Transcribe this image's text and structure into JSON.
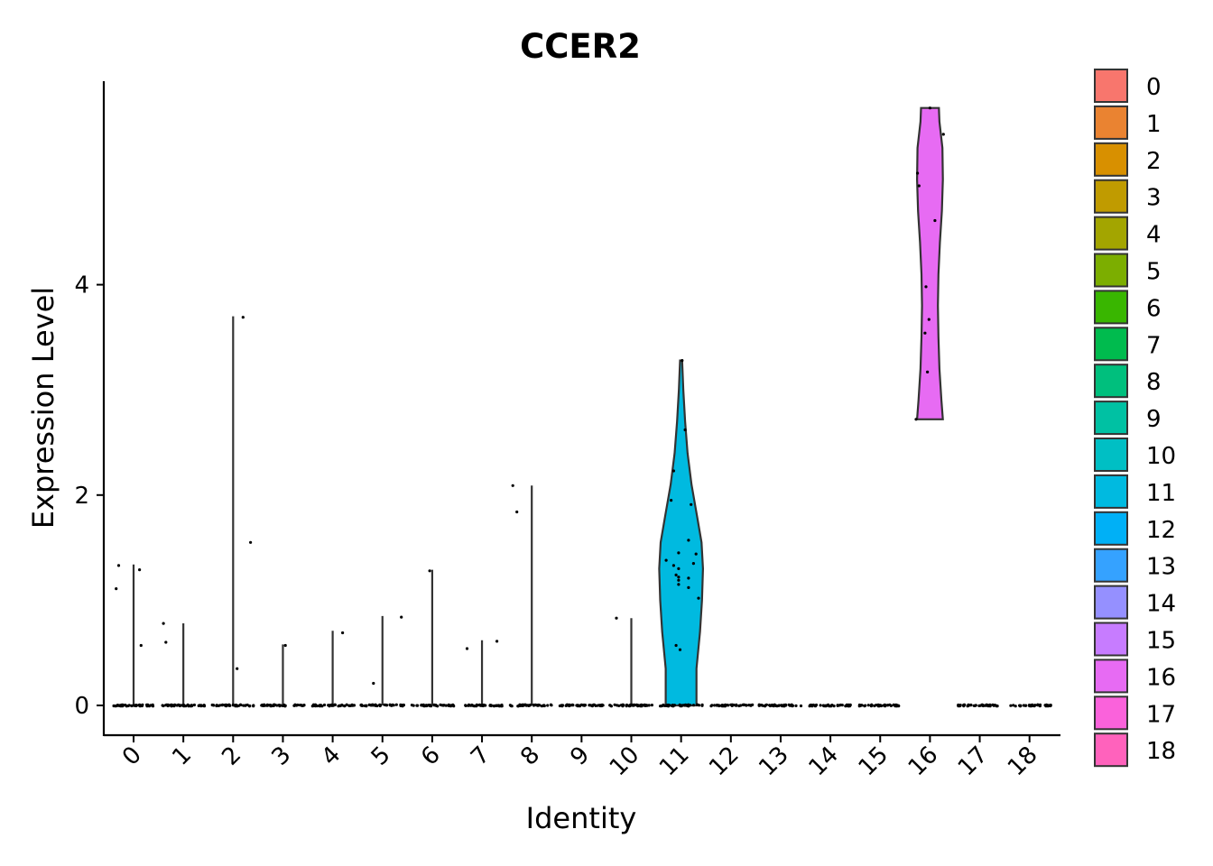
{
  "chart_data": {
    "type": "violin",
    "title": "CCER2",
    "xlabel": "Identity",
    "ylabel": "Expression Level",
    "ylim": [
      -0.7,
      5.9
    ],
    "yticks": [
      0,
      2,
      4
    ],
    "grid": false,
    "legend_position": "right",
    "categories": [
      "0",
      "1",
      "2",
      "3",
      "4",
      "5",
      "6",
      "7",
      "8",
      "9",
      "10",
      "11",
      "12",
      "13",
      "14",
      "15",
      "16",
      "17",
      "18"
    ],
    "colors": [
      "#F8766D",
      "#EA8331",
      "#D89000",
      "#C09B00",
      "#A3A500",
      "#7CAE00",
      "#39B600",
      "#00BB4E",
      "#00BF7D",
      "#00C1A3",
      "#00BFC4",
      "#00BAE0",
      "#00B0F6",
      "#35A2FF",
      "#9590FF",
      "#C77CFF",
      "#E76BF3",
      "#FA62DB",
      "#FF62BC"
    ],
    "series": [
      {
        "name": "0",
        "max": 1.34,
        "high_points": [
          [
            -0.3,
            1.33
          ],
          [
            -0.35,
            1.11
          ],
          [
            0.12,
            1.29
          ],
          [
            0.15,
            0.57
          ]
        ]
      },
      {
        "name": "1",
        "max": 0.78,
        "high_points": [
          [
            -0.4,
            0.78
          ],
          [
            -0.35,
            0.6
          ]
        ]
      },
      {
        "name": "2",
        "max": 3.7,
        "high_points": [
          [
            0.2,
            3.69
          ],
          [
            0.35,
            1.55
          ],
          [
            0.08,
            0.35
          ]
        ]
      },
      {
        "name": "3",
        "max": 0.58,
        "high_points": [
          [
            0.05,
            0.57
          ]
        ]
      },
      {
        "name": "4",
        "max": 0.71,
        "high_points": [
          [
            0.2,
            0.69
          ]
        ]
      },
      {
        "name": "5",
        "max": 0.85,
        "high_points": [
          [
            0.38,
            0.84
          ],
          [
            -0.18,
            0.21
          ]
        ]
      },
      {
        "name": "6",
        "max": 1.29,
        "high_points": [
          [
            -0.05,
            1.28
          ]
        ]
      },
      {
        "name": "7",
        "max": 0.62,
        "high_points": [
          [
            -0.3,
            0.54
          ],
          [
            0.3,
            0.61
          ]
        ]
      },
      {
        "name": "8",
        "max": 2.09,
        "high_points": [
          [
            -0.38,
            2.09
          ],
          [
            -0.3,
            1.84
          ]
        ]
      },
      {
        "name": "9",
        "max": 0,
        "high_points": []
      },
      {
        "name": "10",
        "max": 0.83,
        "high_points": [
          [
            -0.3,
            0.83
          ]
        ]
      },
      {
        "name": "11",
        "max": 3.28,
        "violin_width": [
          [
            0,
            0.31
          ],
          [
            0.35,
            0.31
          ],
          [
            0.7,
            0.38
          ],
          [
            1.0,
            0.42
          ],
          [
            1.3,
            0.44
          ],
          [
            1.55,
            0.41
          ],
          [
            1.8,
            0.32
          ],
          [
            2.1,
            0.21
          ],
          [
            2.4,
            0.13
          ],
          [
            2.7,
            0.08
          ],
          [
            3.0,
            0.045
          ],
          [
            3.28,
            0.02
          ]
        ],
        "high_points": [
          [
            0.02,
            3.28
          ],
          [
            0.08,
            2.62
          ],
          [
            -0.15,
            2.23
          ],
          [
            -0.2,
            1.95
          ],
          [
            0.2,
            1.91
          ],
          [
            0.15,
            1.57
          ],
          [
            0.3,
            1.44
          ],
          [
            -0.05,
            1.45
          ],
          [
            0.25,
            1.35
          ],
          [
            -0.15,
            1.33
          ],
          [
            -0.3,
            1.38
          ],
          [
            -0.05,
            1.3
          ],
          [
            -0.1,
            1.24
          ],
          [
            -0.05,
            1.22
          ],
          [
            0.15,
            1.21
          ],
          [
            -0.05,
            1.19
          ],
          [
            -0.05,
            1.15
          ],
          [
            0.15,
            1.12
          ],
          [
            0.35,
            1.02
          ],
          [
            -0.1,
            0.57
          ],
          [
            -0.02,
            0.53
          ]
        ]
      },
      {
        "name": "12",
        "max": 0,
        "high_points": []
      },
      {
        "name": "13",
        "max": 0,
        "high_points": []
      },
      {
        "name": "14",
        "max": 0,
        "high_points": []
      },
      {
        "name": "15",
        "max": 0,
        "high_points": []
      },
      {
        "name": "16",
        "min": 2.72,
        "max": 5.68,
        "violin_width": [
          [
            2.72,
            0.26
          ],
          [
            2.9,
            0.23
          ],
          [
            3.2,
            0.19
          ],
          [
            3.5,
            0.17
          ],
          [
            3.8,
            0.16
          ],
          [
            4.1,
            0.17
          ],
          [
            4.4,
            0.2
          ],
          [
            4.7,
            0.24
          ],
          [
            5.0,
            0.26
          ],
          [
            5.3,
            0.25
          ],
          [
            5.55,
            0.19
          ],
          [
            5.68,
            0.18
          ]
        ],
        "high_points": [
          [
            0,
            5.68
          ],
          [
            0.27,
            5.43
          ],
          [
            -0.25,
            5.06
          ],
          [
            -0.22,
            4.94
          ],
          [
            0.1,
            4.61
          ],
          [
            -0.08,
            3.98
          ],
          [
            -0.02,
            3.67
          ],
          [
            -0.1,
            3.54
          ],
          [
            -0.05,
            3.17
          ],
          [
            -0.28,
            2.72
          ]
        ]
      },
      {
        "name": "17",
        "max": 0,
        "high_points": []
      },
      {
        "name": "18",
        "max": 0,
        "high_points": []
      }
    ]
  }
}
